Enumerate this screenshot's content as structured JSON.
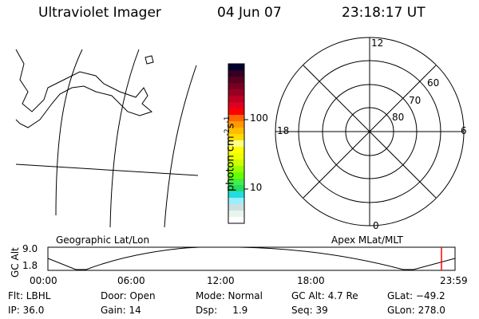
{
  "header": {
    "instrument": "Ultraviolet Imager",
    "date": "04 Jun 07",
    "time": "23:18:17 UT"
  },
  "colorbar": {
    "label": "photon cm",
    "exp1": "-2",
    "mid": "s",
    "exp2": "-1",
    "ticks": [
      "100",
      "10"
    ],
    "colors": [
      "#000033",
      "#330022",
      "#550022",
      "#770022",
      "#990022",
      "#bb0022",
      "#dd0022",
      "#ff0000",
      "#ff6600",
      "#ff9900",
      "#ffbb00",
      "#ffdd00",
      "#ffff88",
      "#ffff00",
      "#eeff00",
      "#ccff00",
      "#99ff00",
      "#66ff00",
      "#44ee44",
      "#22dd66",
      "#22dddd",
      "#99eeff",
      "#cce0e0",
      "#e8f4ee",
      "#ffffff"
    ]
  },
  "polar": {
    "mlt_labels": [
      "12",
      "18",
      "6",
      "0"
    ],
    "lat_labels": [
      "60",
      "70",
      "80"
    ]
  },
  "timeline": {
    "left_label": "Geographic Lat/Lon",
    "right_label": "Apex MLat/MLT",
    "y_title": "GC Alt",
    "y_ticks": [
      "9.0",
      "1.8"
    ],
    "x_ticks": [
      "00:00",
      "06:00",
      "12:00",
      "18:00",
      "23:59"
    ],
    "current_marker_color": "#ff0000"
  },
  "info": {
    "flt": "Flt: LBHL",
    "ip": "IP: 36.0",
    "door": "Door: Open",
    "gain": "Gain: 14",
    "mode": "Mode: Normal",
    "dsp": "Dsp:     1.9",
    "gcalt": "GC Alt: 4.7 Re",
    "seq": "Seq: 39",
    "glat": "GLat: −49.2",
    "glon": "GLon: 278.0"
  }
}
